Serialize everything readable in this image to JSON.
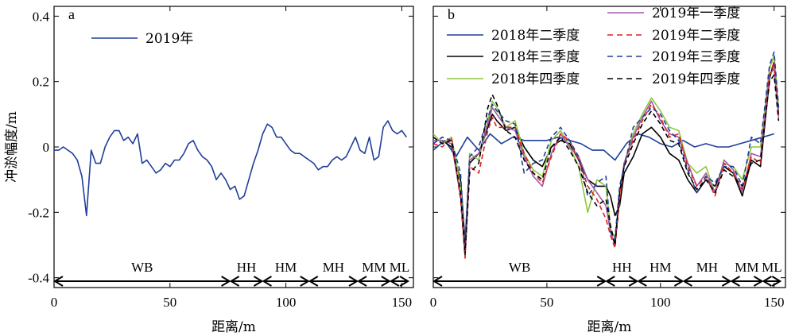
{
  "chart_data": [
    {
      "type": "line",
      "panel_label": "a",
      "xlabel": "距离/m",
      "ylabel": "冲淤幅度/m",
      "xlim": [
        0,
        155
      ],
      "ylim": [
        -0.43,
        0.43
      ],
      "xticks": [
        "0",
        "50",
        "100",
        "150"
      ],
      "yticks": [
        "0.4",
        "0.2",
        "0",
        "-0.2",
        "-0.4"
      ],
      "legend_position": "top-left",
      "zones": [
        {
          "label": "WB",
          "from": 0,
          "to": 76
        },
        {
          "label": "HH",
          "from": 76,
          "to": 90
        },
        {
          "label": "HM",
          "from": 90,
          "to": 110
        },
        {
          "label": "MH",
          "from": 110,
          "to": 131
        },
        {
          "label": "MM",
          "from": 131,
          "to": 145
        },
        {
          "label": "ML",
          "from": 145,
          "to": 153
        }
      ],
      "series": [
        {
          "name": "2019年",
          "color": "#1f3f99",
          "dash": "solid",
          "x": [
            0,
            2,
            4,
            6,
            8,
            10,
            12,
            14,
            16,
            18,
            20,
            22,
            24,
            26,
            28,
            30,
            32,
            34,
            36,
            38,
            40,
            42,
            44,
            46,
            48,
            50,
            52,
            54,
            56,
            58,
            60,
            62,
            64,
            66,
            68,
            70,
            72,
            74,
            76,
            78,
            80,
            82,
            84,
            86,
            88,
            90,
            92,
            94,
            96,
            98,
            100,
            102,
            104,
            106,
            108,
            110,
            112,
            114,
            116,
            118,
            120,
            122,
            124,
            126,
            128,
            130,
            132,
            134,
            136,
            138,
            140,
            142,
            144,
            146,
            148,
            150,
            152
          ],
          "y": [
            -0.01,
            -0.01,
            0.0,
            -0.01,
            -0.02,
            -0.04,
            -0.09,
            -0.21,
            -0.01,
            -0.05,
            -0.05,
            0.0,
            0.03,
            0.05,
            0.05,
            0.02,
            0.03,
            0.01,
            0.04,
            -0.05,
            -0.04,
            -0.06,
            -0.08,
            -0.07,
            -0.05,
            -0.06,
            -0.04,
            -0.04,
            -0.02,
            0.01,
            0.02,
            -0.01,
            -0.03,
            -0.04,
            -0.06,
            -0.1,
            -0.08,
            -0.1,
            -0.13,
            -0.12,
            -0.16,
            -0.15,
            -0.1,
            -0.05,
            -0.01,
            0.04,
            0.07,
            0.06,
            0.03,
            0.03,
            0.01,
            -0.01,
            -0.02,
            -0.02,
            -0.03,
            -0.04,
            -0.05,
            -0.07,
            -0.06,
            -0.06,
            -0.04,
            -0.03,
            -0.04,
            -0.03,
            0.0,
            0.03,
            -0.01,
            -0.02,
            0.03,
            -0.04,
            -0.03,
            0.06,
            0.08,
            0.05,
            0.04,
            0.05,
            0.03
          ]
        }
      ]
    },
    {
      "type": "line",
      "panel_label": "b",
      "xlabel": "距离/m",
      "ylabel": "",
      "xlim": [
        0,
        155
      ],
      "ylim": [
        -0.43,
        0.43
      ],
      "xticks": [
        "0",
        "50",
        "100",
        "150"
      ],
      "legend_position": "top",
      "zones": [
        {
          "label": "WB",
          "from": 0,
          "to": 76
        },
        {
          "label": "HH",
          "from": 76,
          "to": 90
        },
        {
          "label": "HM",
          "from": 90,
          "to": 110
        },
        {
          "label": "MH",
          "from": 110,
          "to": 131
        },
        {
          "label": "MM",
          "from": 131,
          "to": 145
        },
        {
          "label": "ML",
          "from": 145,
          "to": 153
        }
      ],
      "series": [
        {
          "name": "2018年二季度",
          "color": "#1f3f99",
          "dash": "solid",
          "x": [
            0,
            5,
            10,
            15,
            20,
            25,
            30,
            35,
            40,
            45,
            50,
            55,
            60,
            65,
            70,
            75,
            80,
            85,
            90,
            95,
            100,
            105,
            110,
            115,
            120,
            125,
            130,
            135,
            140,
            145,
            150
          ],
          "y": [
            -0.01,
            0.02,
            -0.03,
            0.03,
            -0.01,
            0.04,
            0.01,
            0.03,
            0.02,
            0.02,
            0.02,
            0.03,
            0.02,
            0.01,
            -0.01,
            -0.01,
            -0.04,
            0.01,
            0.04,
            0.03,
            0.01,
            0.0,
            0.02,
            0.0,
            0.01,
            0.0,
            0.0,
            0.01,
            0.02,
            0.03,
            0.04
          ]
        },
        {
          "name": "2018年三季度",
          "color": "#000000",
          "dash": "solid",
          "x": [
            0,
            4,
            8,
            12,
            14,
            16,
            20,
            24,
            26,
            28,
            32,
            36,
            40,
            44,
            48,
            52,
            56,
            60,
            64,
            68,
            72,
            76,
            78,
            80,
            82,
            84,
            88,
            92,
            96,
            100,
            104,
            108,
            112,
            116,
            120,
            124,
            128,
            132,
            136,
            140,
            144,
            148,
            150,
            152
          ],
          "y": [
            0.02,
            0.02,
            0.0,
            -0.1,
            -0.29,
            -0.05,
            -0.02,
            0.06,
            0.1,
            0.08,
            0.05,
            0.06,
            0.0,
            -0.04,
            -0.06,
            0.0,
            0.02,
            0.01,
            -0.04,
            -0.1,
            -0.12,
            -0.12,
            -0.15,
            -0.21,
            -0.18,
            -0.08,
            -0.03,
            0.04,
            0.06,
            0.03,
            -0.02,
            -0.04,
            -0.1,
            -0.14,
            -0.1,
            -0.12,
            -0.06,
            -0.08,
            -0.15,
            -0.04,
            -0.06,
            0.21,
            0.26,
            0.1
          ]
        },
        {
          "name": "2018年四季度",
          "color": "#8dc63f",
          "dash": "solid",
          "x": [
            0,
            4,
            8,
            12,
            14,
            16,
            20,
            24,
            26,
            28,
            32,
            36,
            40,
            44,
            48,
            52,
            56,
            60,
            64,
            68,
            72,
            76,
            78,
            80,
            82,
            84,
            88,
            92,
            96,
            100,
            104,
            108,
            112,
            116,
            120,
            124,
            128,
            132,
            136,
            140,
            144,
            148,
            150,
            152
          ],
          "y": [
            0.04,
            0.01,
            0.03,
            -0.12,
            -0.32,
            -0.02,
            -0.04,
            0.08,
            0.14,
            0.12,
            0.06,
            0.08,
            -0.02,
            -0.07,
            -0.09,
            0.02,
            0.05,
            0.0,
            -0.06,
            -0.2,
            -0.1,
            -0.12,
            -0.25,
            -0.28,
            -0.15,
            -0.05,
            0.04,
            0.1,
            0.15,
            0.11,
            0.06,
            0.05,
            -0.05,
            -0.08,
            -0.06,
            -0.14,
            -0.05,
            -0.06,
            -0.1,
            0.0,
            0.0,
            0.24,
            0.28,
            0.12
          ]
        },
        {
          "name": "2019年一季度",
          "color": "#a05aa8",
          "dash": "solid",
          "x": [
            0,
            4,
            8,
            12,
            14,
            16,
            20,
            24,
            26,
            28,
            32,
            36,
            40,
            44,
            48,
            52,
            56,
            60,
            64,
            68,
            72,
            76,
            78,
            80,
            82,
            84,
            88,
            92,
            96,
            100,
            104,
            108,
            112,
            116,
            120,
            124,
            128,
            132,
            136,
            140,
            144,
            148,
            150,
            152
          ],
          "y": [
            0.02,
            0.02,
            0.01,
            -0.15,
            -0.32,
            -0.04,
            -0.02,
            0.07,
            0.12,
            0.1,
            0.06,
            0.05,
            -0.03,
            -0.09,
            -0.12,
            -0.02,
            0.04,
            0.0,
            -0.03,
            -0.1,
            -0.14,
            -0.18,
            -0.26,
            -0.3,
            -0.14,
            -0.05,
            0.03,
            0.09,
            0.14,
            0.08,
            0.04,
            0.03,
            -0.05,
            -0.12,
            -0.08,
            -0.14,
            -0.04,
            -0.07,
            -0.14,
            -0.02,
            -0.03,
            0.22,
            0.24,
            0.09
          ]
        },
        {
          "name": "2019年二季度",
          "color": "#e02020",
          "dash": "dashed",
          "x": [
            0,
            4,
            8,
            12,
            14,
            16,
            20,
            24,
            26,
            28,
            32,
            36,
            40,
            44,
            48,
            52,
            56,
            60,
            64,
            68,
            72,
            76,
            78,
            80,
            82,
            84,
            88,
            92,
            96,
            100,
            104,
            108,
            112,
            116,
            120,
            124,
            128,
            132,
            136,
            140,
            144,
            148,
            150,
            152
          ],
          "y": [
            0.01,
            0.0,
            0.03,
            -0.16,
            -0.34,
            -0.06,
            -0.08,
            0.05,
            0.09,
            0.06,
            0.06,
            0.06,
            -0.02,
            -0.08,
            -0.11,
            -0.03,
            0.04,
            0.02,
            -0.04,
            -0.12,
            -0.16,
            -0.22,
            -0.27,
            -0.31,
            -0.16,
            -0.05,
            0.02,
            0.08,
            0.13,
            0.09,
            0.03,
            0.04,
            -0.06,
            -0.12,
            -0.09,
            -0.15,
            -0.05,
            -0.08,
            -0.13,
            -0.03,
            -0.05,
            0.22,
            0.26,
            0.09
          ]
        },
        {
          "name": "2019年三季度",
          "color": "#1f3f99",
          "dash": "dashed",
          "x": [
            0,
            4,
            8,
            12,
            14,
            16,
            20,
            24,
            26,
            28,
            32,
            36,
            40,
            44,
            48,
            52,
            56,
            60,
            64,
            68,
            72,
            76,
            78,
            80,
            82,
            84,
            88,
            92,
            96,
            100,
            104,
            108,
            112,
            116,
            120,
            124,
            128,
            132,
            136,
            140,
            144,
            148,
            150,
            152
          ],
          "y": [
            0.01,
            0.03,
            0.02,
            -0.08,
            -0.3,
            -0.03,
            0.0,
            0.09,
            0.13,
            0.11,
            0.08,
            0.07,
            -0.08,
            -0.05,
            -0.04,
            0.03,
            0.06,
            0.02,
            -0.03,
            -0.15,
            -0.11,
            -0.09,
            -0.26,
            -0.28,
            -0.12,
            -0.06,
            0.06,
            0.09,
            0.12,
            0.1,
            0.05,
            0.02,
            -0.07,
            -0.14,
            -0.09,
            -0.11,
            -0.06,
            -0.06,
            -0.12,
            0.03,
            0.01,
            0.25,
            0.29,
            0.12
          ]
        },
        {
          "name": "2019年四季度",
          "color": "#000000",
          "dash": "dashed",
          "x": [
            0,
            4,
            8,
            12,
            14,
            16,
            20,
            24,
            26,
            28,
            32,
            36,
            40,
            44,
            48,
            52,
            56,
            60,
            64,
            68,
            72,
            76,
            78,
            80,
            82,
            84,
            88,
            92,
            96,
            100,
            104,
            108,
            112,
            116,
            120,
            124,
            128,
            132,
            136,
            140,
            144,
            148,
            150,
            152
          ],
          "y": [
            0.03,
            0.01,
            0.02,
            -0.14,
            -0.33,
            -0.08,
            -0.05,
            0.12,
            0.16,
            0.13,
            0.05,
            0.03,
            -0.04,
            -0.08,
            -0.1,
            0.0,
            0.03,
            -0.01,
            -0.06,
            -0.14,
            -0.18,
            -0.16,
            -0.24,
            -0.3,
            -0.14,
            -0.06,
            0.01,
            0.07,
            0.11,
            0.07,
            0.02,
            0.01,
            -0.08,
            -0.13,
            -0.1,
            -0.14,
            -0.07,
            -0.09,
            -0.12,
            -0.05,
            -0.04,
            0.2,
            0.22,
            0.08
          ]
        }
      ]
    }
  ]
}
